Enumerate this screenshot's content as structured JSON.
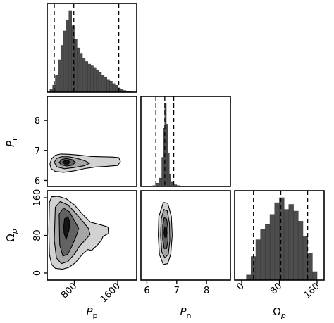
{
  "chart_data": {
    "type": "corner",
    "parameters": [
      {
        "key": "Pp",
        "label_main": "P",
        "label_sub": "p",
        "range": [
          300,
          1950
        ],
        "ticks": [
          800,
          1600
        ],
        "tick_labels": [
          "800",
          "1600"
        ]
      },
      {
        "key": "Pn",
        "label_main": "P",
        "label_sub": "n",
        "range": [
          5.8,
          8.8
        ],
        "ticks": [
          6,
          7,
          8
        ],
        "tick_labels": [
          "6",
          "7",
          "8"
        ]
      },
      {
        "key": "Omega_p",
        "label_main": "Ω",
        "label_sub": "p",
        "range": [
          -15,
          175
        ],
        "ticks": [
          0,
          80,
          160
        ],
        "tick_labels": [
          "0",
          "80",
          "160"
        ]
      }
    ],
    "marginals": [
      {
        "param": "Pp",
        "quantiles": [
          430,
          790,
          1620
        ],
        "bins": [
          300,
          350,
          400,
          450,
          500,
          550,
          600,
          650,
          700,
          750,
          800,
          850,
          900,
          950,
          1000,
          1050,
          1100,
          1150,
          1200,
          1250,
          1300,
          1350,
          1400,
          1450,
          1500,
          1550,
          1600,
          1650,
          1700,
          1750,
          1800,
          1850,
          1900
        ],
        "counts": [
          0,
          3,
          8,
          20,
          38,
          55,
          72,
          85,
          96,
          78,
          62,
          52,
          45,
          40,
          36,
          33,
          31,
          29,
          26,
          23,
          20,
          18,
          15,
          13,
          10,
          8,
          5,
          3,
          2,
          1,
          1,
          0
        ]
      },
      {
        "param": "Pn",
        "quantiles": [
          6.3,
          6.6,
          6.9
        ],
        "bins": [
          6.0,
          6.1,
          6.2,
          6.3,
          6.4,
          6.5,
          6.55,
          6.6,
          6.65,
          6.7,
          6.75,
          6.8,
          6.9,
          7.0,
          7.1,
          7.2
        ],
        "counts": [
          0,
          0,
          1,
          4,
          10,
          35,
          70,
          100,
          75,
          40,
          15,
          6,
          2,
          1,
          0
        ]
      },
      {
        "param": "Omega_p",
        "quantiles": [
          25,
          83,
          140
        ],
        "bins": [
          0,
          10,
          20,
          30,
          40,
          50,
          60,
          70,
          80,
          90,
          100,
          110,
          120,
          130,
          140,
          150,
          160,
          170
        ],
        "counts": [
          0,
          6,
          28,
          48,
          60,
          66,
          78,
          92,
          98,
          84,
          90,
          82,
          70,
          52,
          32,
          10,
          0
        ]
      }
    ],
    "joint": [
      {
        "x_param": "Pp",
        "y_param": "Pn",
        "contours": [
          {
            "level": 1,
            "fill": "#d2d2d2",
            "points": [
              [
                350,
                6.55
              ],
              [
                380,
                6.72
              ],
              [
                450,
                6.84
              ],
              [
                550,
                6.88
              ],
              [
                700,
                6.87
              ],
              [
                900,
                6.84
              ],
              [
                1100,
                6.8
              ],
              [
                1300,
                6.79
              ],
              [
                1500,
                6.78
              ],
              [
                1620,
                6.76
              ],
              [
                1650,
                6.63
              ],
              [
                1600,
                6.5
              ],
              [
                1400,
                6.47
              ],
              [
                1200,
                6.45
              ],
              [
                1000,
                6.4
              ],
              [
                800,
                6.32
              ],
              [
                600,
                6.27
              ],
              [
                450,
                6.3
              ],
              [
                370,
                6.4
              ]
            ]
          },
          {
            "level": 2,
            "fill": "#a6a6a6",
            "points": [
              [
                430,
                6.6
              ],
              [
                470,
                6.73
              ],
              [
                560,
                6.79
              ],
              [
                700,
                6.79
              ],
              [
                860,
                6.73
              ],
              [
                1000,
                6.65
              ],
              [
                1080,
                6.57
              ],
              [
                980,
                6.49
              ],
              [
                800,
                6.43
              ],
              [
                620,
                6.39
              ],
              [
                480,
                6.45
              ]
            ]
          },
          {
            "level": 3,
            "fill": "#626262",
            "points": [
              [
                520,
                6.6
              ],
              [
                570,
                6.7
              ],
              [
                650,
                6.73
              ],
              [
                760,
                6.69
              ],
              [
                820,
                6.6
              ],
              [
                760,
                6.51
              ],
              [
                660,
                6.48
              ],
              [
                560,
                6.52
              ]
            ]
          },
          {
            "level": 4,
            "fill": "#141414",
            "points": [
              [
                590,
                6.61
              ],
              [
                630,
                6.67
              ],
              [
                690,
                6.67
              ],
              [
                720,
                6.6
              ],
              [
                680,
                6.54
              ],
              [
                620,
                6.55
              ]
            ]
          }
        ]
      },
      {
        "x_param": "Pp",
        "y_param": "Omega_p",
        "contours": [
          {
            "level": 1,
            "fill": "#d2d2d2",
            "points": [
              [
                340,
                150
              ],
              [
                380,
                162
              ],
              [
                500,
                163
              ],
              [
                650,
                158
              ],
              [
                800,
                145
              ],
              [
                950,
                125
              ],
              [
                1100,
                108
              ],
              [
                1300,
                102
              ],
              [
                1420,
                98
              ],
              [
                1430,
                84
              ],
              [
                1330,
                78
              ],
              [
                1300,
                70
              ],
              [
                1230,
                60
              ],
              [
                1120,
                48
              ],
              [
                1050,
                50
              ],
              [
                950,
                40
              ],
              [
                820,
                22
              ],
              [
                700,
                12
              ],
              [
                580,
                8
              ],
              [
                450,
                10
              ],
              [
                380,
                18
              ],
              [
                340,
                40
              ],
              [
                330,
                90
              ]
            ]
          },
          {
            "level": 2,
            "fill": "#a6a6a6",
            "points": [
              [
                450,
                140
              ],
              [
                540,
                152
              ],
              [
                680,
                145
              ],
              [
                820,
                128
              ],
              [
                940,
                112
              ],
              [
                1060,
                95
              ],
              [
                1090,
                82
              ],
              [
                1000,
                70
              ],
              [
                900,
                58
              ],
              [
                800,
                40
              ],
              [
                680,
                24
              ],
              [
                560,
                20
              ],
              [
                470,
                32
              ],
              [
                430,
                70
              ]
            ]
          },
          {
            "level": 3,
            "fill": "#626262",
            "points": [
              [
                520,
                125
              ],
              [
                600,
                138
              ],
              [
                710,
                130
              ],
              [
                800,
                112
              ],
              [
                880,
                95
              ],
              [
                840,
                80
              ],
              [
                760,
                58
              ],
              [
                680,
                40
              ],
              [
                590,
                36
              ],
              [
                530,
                60
              ]
            ]
          },
          {
            "level": 4,
            "fill": "#141414",
            "points": [
              [
                620,
                115
              ],
              [
                680,
                120
              ],
              [
                720,
                108
              ],
              [
                700,
                90
              ],
              [
                650,
                72
              ],
              [
                610,
                84
              ],
              [
                605,
                100
              ]
            ]
          }
        ]
      },
      {
        "x_param": "Pn",
        "y_param": "Omega_p",
        "contours": [
          {
            "level": 1,
            "fill": "#d2d2d2",
            "points": [
              [
                6.55,
                150
              ],
              [
                6.7,
                148
              ],
              [
                6.82,
                120
              ],
              [
                6.85,
                80
              ],
              [
                6.8,
                40
              ],
              [
                6.7,
                20
              ],
              [
                6.55,
                18
              ],
              [
                6.42,
                40
              ],
              [
                6.38,
                80
              ],
              [
                6.4,
                120
              ]
            ]
          },
          {
            "level": 2,
            "fill": "#a6a6a6",
            "points": [
              [
                6.57,
                135
              ],
              [
                6.68,
                132
              ],
              [
                6.76,
                105
              ],
              [
                6.77,
                70
              ],
              [
                6.72,
                40
              ],
              [
                6.6,
                32
              ],
              [
                6.5,
                45
              ],
              [
                6.46,
                80
              ],
              [
                6.48,
                115
              ]
            ]
          },
          {
            "level": 3,
            "fill": "#626262",
            "points": [
              [
                6.58,
                118
              ],
              [
                6.66,
                115
              ],
              [
                6.71,
                95
              ],
              [
                6.71,
                70
              ],
              [
                6.66,
                52
              ],
              [
                6.58,
                52
              ],
              [
                6.53,
                72
              ],
              [
                6.53,
                100
              ]
            ]
          },
          {
            "level": 4,
            "fill": "#141414",
            "points": [
              [
                6.6,
                98
              ],
              [
                6.65,
                97
              ],
              [
                6.67,
                86
              ],
              [
                6.65,
                76
              ],
              [
                6.6,
                76
              ],
              [
                6.57,
                86
              ]
            ]
          }
        ]
      }
    ]
  }
}
